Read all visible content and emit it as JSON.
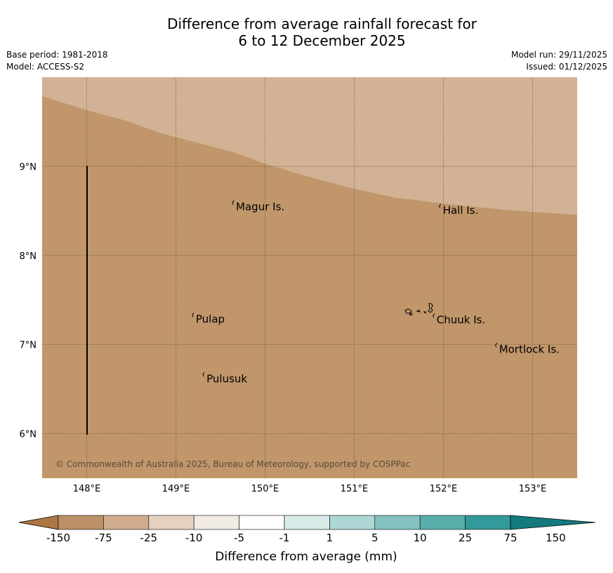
{
  "title": {
    "line1": "Difference from average rainfall forecast for",
    "line2": "6 to 12 December 2025"
  },
  "meta": {
    "base_period": "Base period: 1981-2018",
    "model": "Model: ACCESS-S2",
    "model_run": "Model run: 29/11/2025",
    "issued": "Issued: 01/12/2025"
  },
  "map": {
    "lon_range": [
      147.5,
      153.5
    ],
    "lat_range": [
      5.5,
      10.0
    ],
    "lon_ticks": [
      {
        "value": 148,
        "label": "148°E"
      },
      {
        "value": 149,
        "label": "149°E"
      },
      {
        "value": 150,
        "label": "150°E"
      },
      {
        "value": 151,
        "label": "151°E"
      },
      {
        "value": 152,
        "label": "152°E"
      },
      {
        "value": 153,
        "label": "153°E"
      }
    ],
    "lat_ticks": [
      {
        "value": 9,
        "label": "9°N"
      },
      {
        "value": 8,
        "label": "8°N"
      },
      {
        "value": 7,
        "label": "7°N"
      },
      {
        "value": 6,
        "label": "6°N"
      }
    ],
    "places": [
      {
        "name": "Magur Is.",
        "lon": 149.65,
        "lat": 8.57
      },
      {
        "name": "Hall Is.",
        "lon": 151.97,
        "lat": 8.53
      },
      {
        "name": "Pulap",
        "lon": 149.2,
        "lat": 7.31
      },
      {
        "name": "Chuuk Is.",
        "lon": 151.9,
        "lat": 7.3
      },
      {
        "name": "Mortlock Is.",
        "lon": 152.6,
        "lat": 6.97
      },
      {
        "name": "Pulusuk",
        "lon": 149.32,
        "lat": 6.64
      }
    ],
    "copyright": "© Commonwealth of Australia 2025, Bureau of Meteorology, supported by COSPPac",
    "colors": {
      "main_fill": "#c0966a",
      "light_fill": "#d2b294",
      "grid": "#6b4a2e",
      "line": "#000000"
    }
  },
  "colorbar": {
    "title": "Difference from average (mm)",
    "labels": [
      "-150",
      "-75",
      "-25",
      "-10",
      "-5",
      "-1",
      "1",
      "5",
      "10",
      "25",
      "75",
      "150"
    ],
    "colors": [
      "#ad7641",
      "#bd9167",
      "#d1ad8e",
      "#e3d0be",
      "#f0ebe4",
      "#ffffff",
      "#d7ebe9",
      "#add6d4",
      "#84c1bf",
      "#59aeab",
      "#33999a",
      "#137a7d"
    ]
  }
}
